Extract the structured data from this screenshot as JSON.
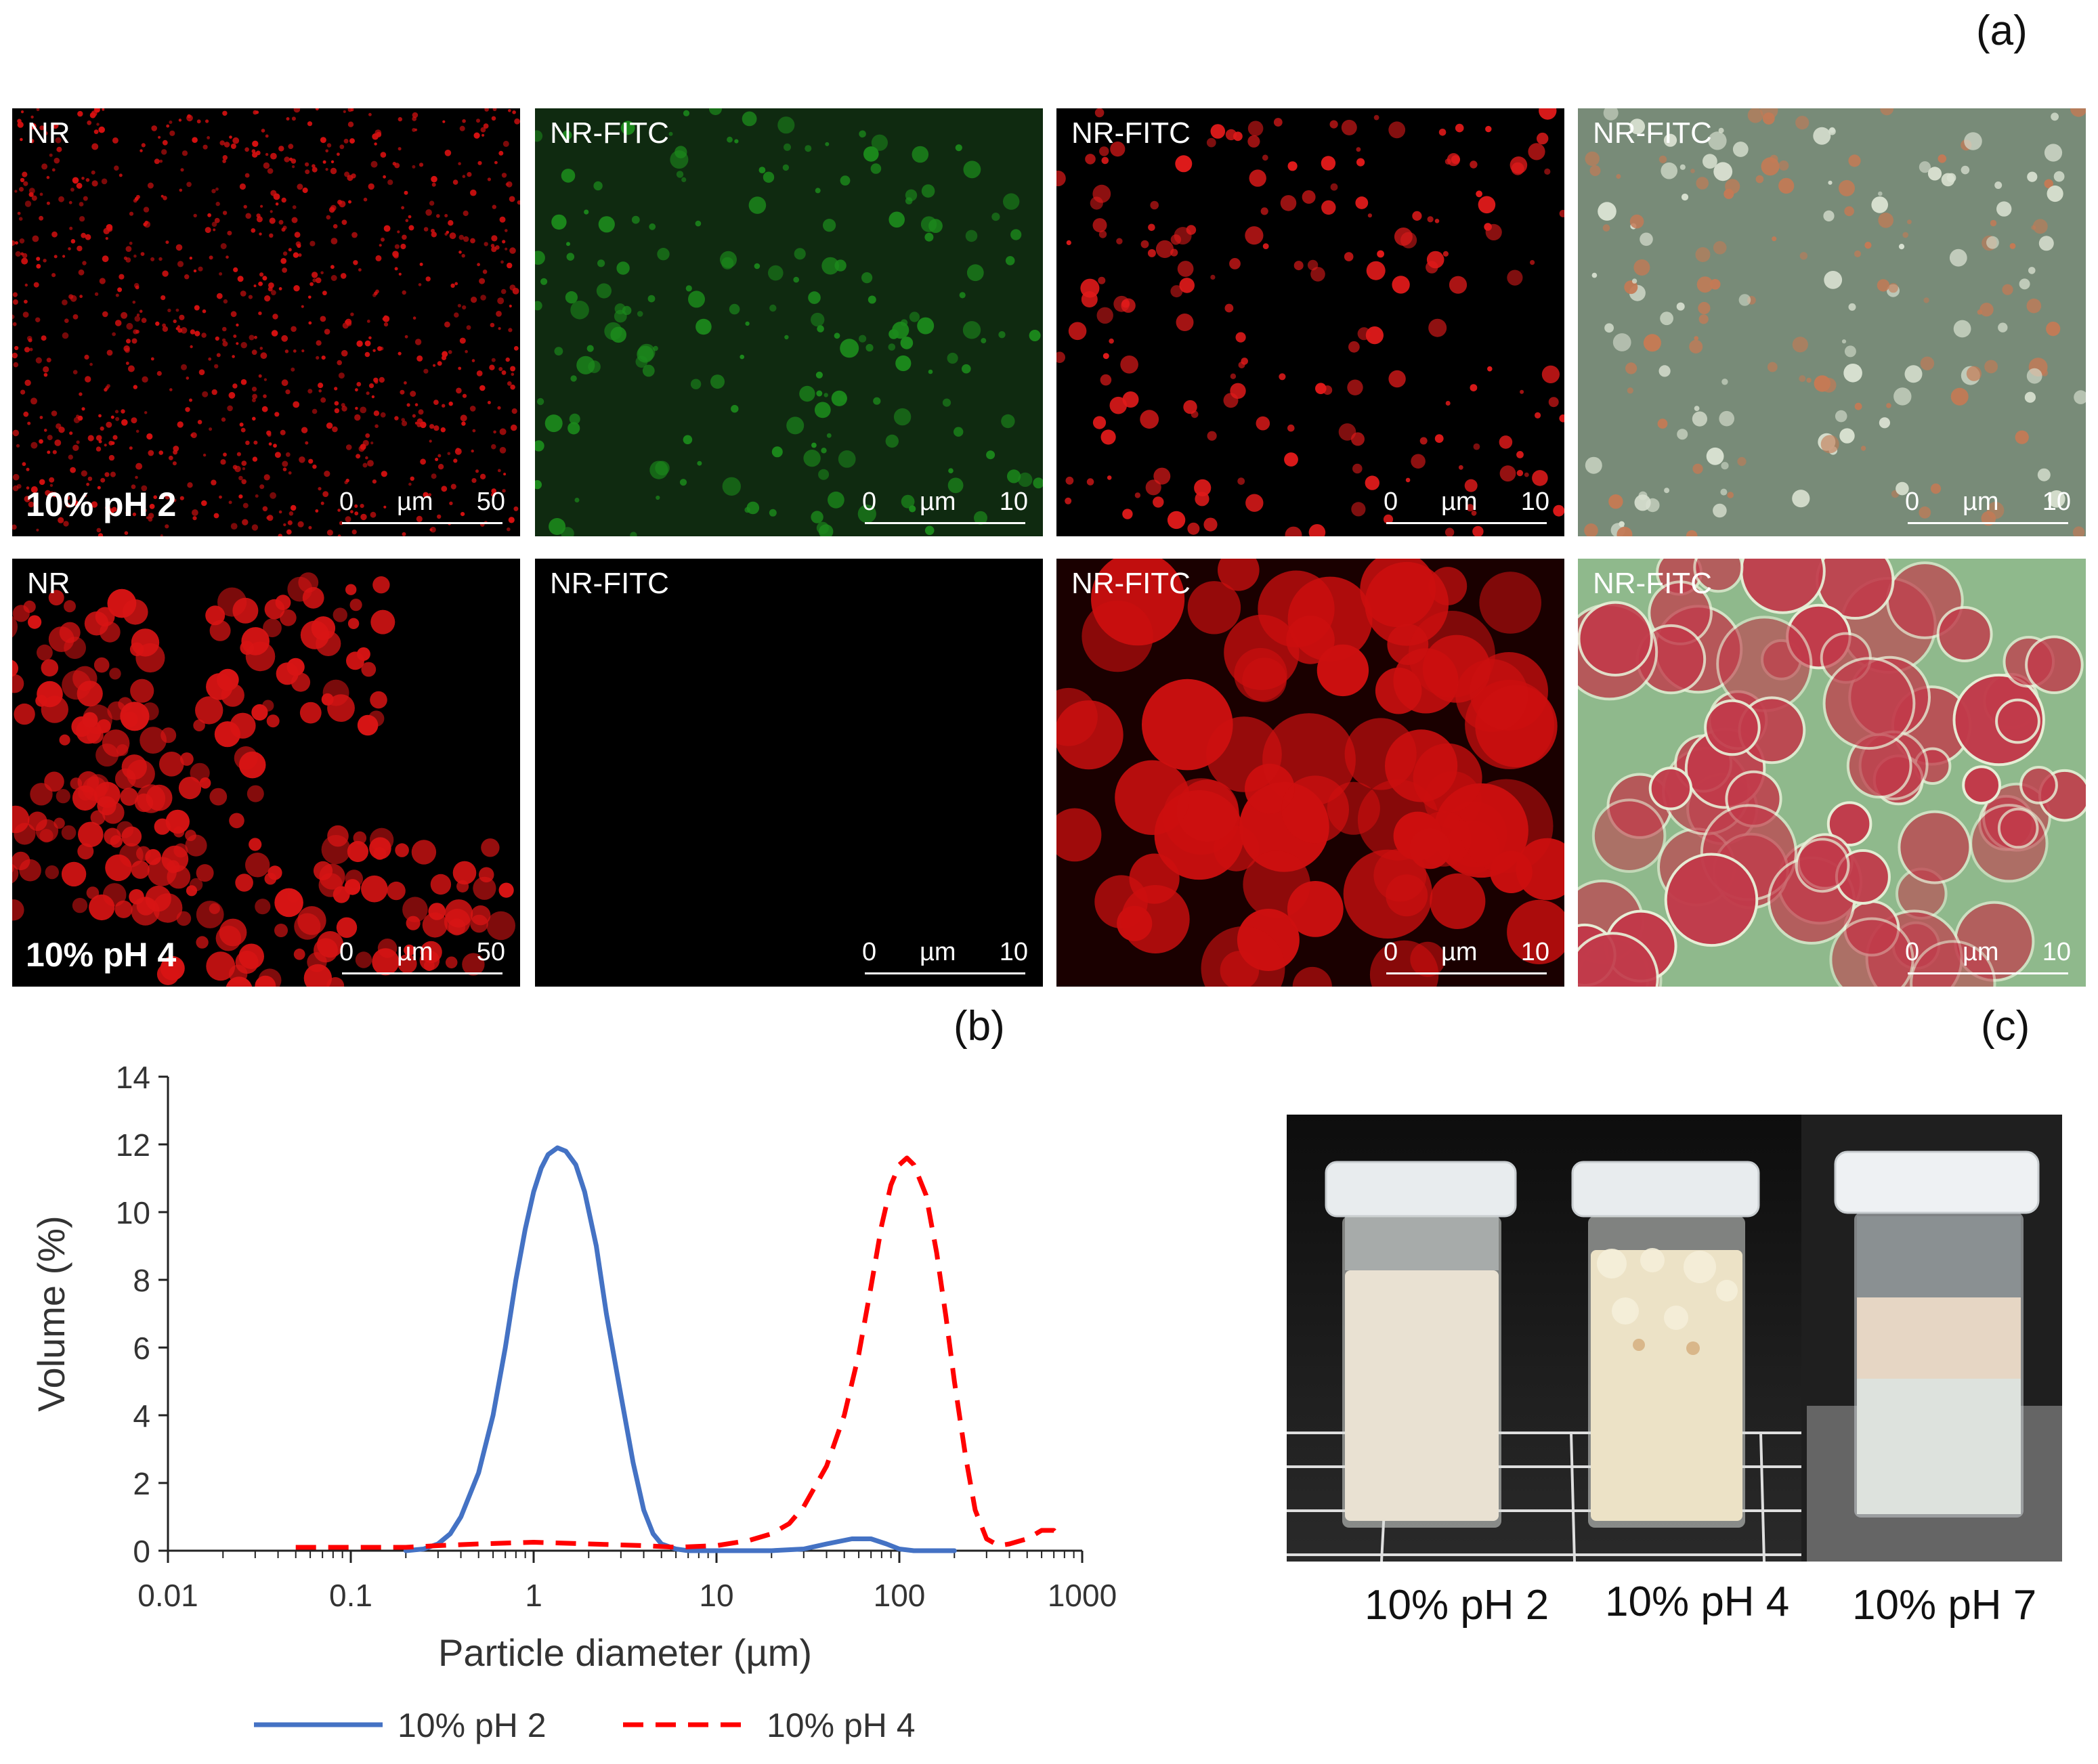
{
  "panel_labels": {
    "a": "(a)",
    "b": "(b)",
    "c": "(c)"
  },
  "micrographs": [
    {
      "row": 1,
      "col": 1,
      "stain": "NR",
      "sample": "10% pH 2",
      "scale": [
        "0",
        "µm",
        "50"
      ],
      "tint": "#d61010"
    },
    {
      "row": 1,
      "col": 2,
      "stain": "NR-FITC",
      "sample": "",
      "scale": [
        "0",
        "µm",
        "10"
      ],
      "tint": "#1c8a1c"
    },
    {
      "row": 1,
      "col": 3,
      "stain": "NR-FITC",
      "sample": "",
      "scale": [
        "0",
        "µm",
        "10"
      ],
      "tint": "#e01a1a"
    },
    {
      "row": 1,
      "col": 4,
      "stain": "NR-FITC",
      "sample": "",
      "scale": [
        "0",
        "µm",
        "10"
      ],
      "tint": "#7d9a7d"
    },
    {
      "row": 2,
      "col": 1,
      "stain": "NR",
      "sample": "10% pH 4",
      "scale": [
        "0",
        "µm",
        "50"
      ],
      "tint": "#d81414"
    },
    {
      "row": 2,
      "col": 2,
      "stain": "NR-FITC",
      "sample": "",
      "scale": [
        "0",
        "µm",
        "10"
      ],
      "tint": "#27d627"
    },
    {
      "row": 2,
      "col": 3,
      "stain": "NR-FITC",
      "sample": "",
      "scale": [
        "0",
        "µm",
        "10"
      ],
      "tint": "#cc0f0f"
    },
    {
      "row": 2,
      "col": 4,
      "stain": "NR-FITC",
      "sample": "",
      "scale": [
        "0",
        "µm",
        "10"
      ],
      "tint": "#c23a4a"
    }
  ],
  "photo_labels": [
    "10% pH 2",
    "10% pH 4",
    "10% pH 7"
  ],
  "chart_data": {
    "type": "line",
    "title": "",
    "xlabel": "Particle diameter (µm)",
    "ylabel": "Volume (%)",
    "xscale": "log",
    "xlim": [
      0.01,
      1000
    ],
    "ylim": [
      0,
      14
    ],
    "xticks": [
      0.01,
      0.1,
      1,
      10,
      100,
      1000
    ],
    "xtick_labels": [
      "0.01",
      "0.1",
      "1",
      "10",
      "100",
      "1000"
    ],
    "yticks": [
      0,
      2,
      4,
      6,
      8,
      10,
      12,
      14
    ],
    "legend_position": "bottom",
    "series": [
      {
        "name": "10% pH 2",
        "color": "#4472C4",
        "dash": "solid",
        "points": [
          [
            0.2,
            0.0
          ],
          [
            0.25,
            0.05
          ],
          [
            0.3,
            0.2
          ],
          [
            0.35,
            0.5
          ],
          [
            0.4,
            1.0
          ],
          [
            0.5,
            2.3
          ],
          [
            0.6,
            4.0
          ],
          [
            0.7,
            6.0
          ],
          [
            0.8,
            8.0
          ],
          [
            0.9,
            9.5
          ],
          [
            1.0,
            10.6
          ],
          [
            1.1,
            11.3
          ],
          [
            1.2,
            11.7
          ],
          [
            1.35,
            11.9
          ],
          [
            1.5,
            11.8
          ],
          [
            1.7,
            11.4
          ],
          [
            1.9,
            10.6
          ],
          [
            2.2,
            9.0
          ],
          [
            2.5,
            7.0
          ],
          [
            3.0,
            4.6
          ],
          [
            3.5,
            2.6
          ],
          [
            4.0,
            1.2
          ],
          [
            4.5,
            0.5
          ],
          [
            5.0,
            0.2
          ],
          [
            6.0,
            0.05
          ],
          [
            7.0,
            0.0
          ],
          [
            20,
            0.0
          ],
          [
            30,
            0.05
          ],
          [
            40,
            0.2
          ],
          [
            55,
            0.35
          ],
          [
            70,
            0.35
          ],
          [
            85,
            0.2
          ],
          [
            100,
            0.05
          ],
          [
            120,
            0.0
          ],
          [
            200,
            0.0
          ]
        ]
      },
      {
        "name": "10% pH 4",
        "color": "#FF0000",
        "dash": "dashed",
        "points": [
          [
            0.05,
            0.1
          ],
          [
            0.1,
            0.1
          ],
          [
            0.2,
            0.1
          ],
          [
            0.3,
            0.15
          ],
          [
            0.5,
            0.2
          ],
          [
            1.0,
            0.25
          ],
          [
            2.0,
            0.2
          ],
          [
            4.0,
            0.15
          ],
          [
            6.0,
            0.1
          ],
          [
            10,
            0.15
          ],
          [
            15,
            0.3
          ],
          [
            20,
            0.5
          ],
          [
            25,
            0.8
          ],
          [
            30,
            1.3
          ],
          [
            40,
            2.5
          ],
          [
            50,
            4.0
          ],
          [
            60,
            5.8
          ],
          [
            70,
            7.8
          ],
          [
            80,
            9.6
          ],
          [
            90,
            10.8
          ],
          [
            100,
            11.4
          ],
          [
            110,
            11.6
          ],
          [
            120,
            11.4
          ],
          [
            140,
            10.5
          ],
          [
            160,
            8.8
          ],
          [
            180,
            6.9
          ],
          [
            200,
            5.0
          ],
          [
            230,
            2.8
          ],
          [
            260,
            1.2
          ],
          [
            300,
            0.35
          ],
          [
            350,
            0.15
          ],
          [
            400,
            0.2
          ],
          [
            500,
            0.35
          ],
          [
            600,
            0.6
          ],
          [
            700,
            0.6
          ],
          [
            750,
            0.4
          ]
        ]
      }
    ]
  }
}
